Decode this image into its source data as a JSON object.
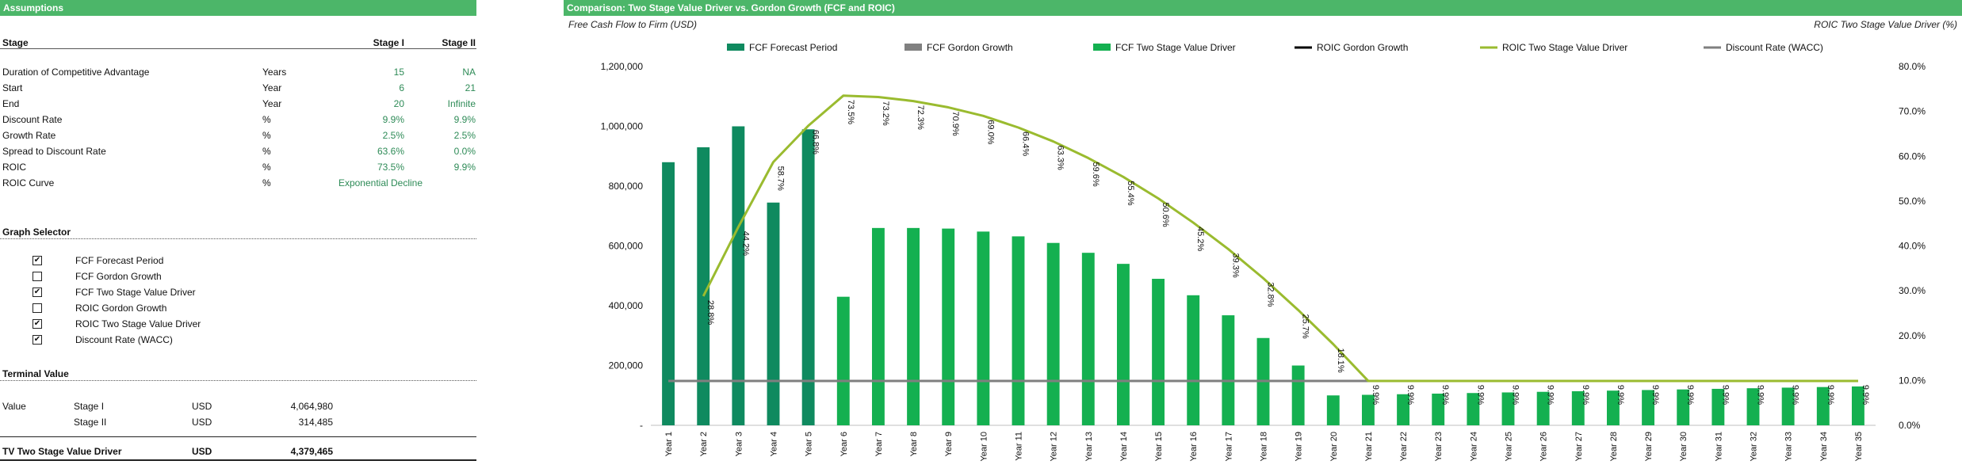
{
  "left_panel": {
    "header": "Assumptions",
    "stage_table": {
      "title": "Stage",
      "col_stage1": "Stage I",
      "col_stage2": "Stage II",
      "rows": [
        {
          "label": "Duration of Competitive Advantage",
          "unit": "Years",
          "s1": "15",
          "s2": "NA"
        },
        {
          "label": "Start",
          "unit": "Year",
          "s1": "6",
          "s2": "21"
        },
        {
          "label": "End",
          "unit": "Year",
          "s1": "20",
          "s2": "Infinite"
        },
        {
          "label": "Discount Rate",
          "unit": "%",
          "s1": "9.9%",
          "s2": "9.9%"
        },
        {
          "label": "Growth Rate",
          "unit": "%",
          "s1": "2.5%",
          "s2": "2.5%"
        },
        {
          "label": "Spread to Discount Rate",
          "unit": "%",
          "s1": "63.6%",
          "s2": "0.0%"
        },
        {
          "label": "ROIC",
          "unit": "%",
          "s1": "73.5%",
          "s2": "9.9%"
        },
        {
          "label": "ROIC Curve",
          "unit": "%",
          "s1": "Exponential Decline",
          "s2": ""
        }
      ]
    },
    "graph_selector": {
      "title": "Graph Selector",
      "items": [
        {
          "label": "FCF Forecast Period",
          "checked": true
        },
        {
          "label": "FCF Gordon Growth",
          "checked": false
        },
        {
          "label": "FCF Two Stage Value Driver",
          "checked": true
        },
        {
          "label": "ROIC Gordon Growth",
          "checked": false
        },
        {
          "label": "ROIC Two Stage Value Driver",
          "checked": true
        },
        {
          "label": "Discount Rate (WACC)",
          "checked": true
        }
      ]
    },
    "terminal_value": {
      "title": "Terminal Value",
      "row1": {
        "label": "Value",
        "stage": "Stage I",
        "unit": "USD",
        "value": "4,064,980"
      },
      "row2": {
        "label": "",
        "stage": "Stage II",
        "unit": "USD",
        "value": "314,485"
      },
      "total": {
        "label": "TV Two Stage Value Driver",
        "unit": "USD",
        "value": "4,379,465"
      }
    }
  },
  "right_panel": {
    "header": "Comparison: Two Stage Value Driver vs. Gordon Growth (FCF and ROIC)"
  },
  "chart_data": {
    "type": "bar",
    "title": "",
    "left_axis_title": "Free Cash Flow to Firm (USD)",
    "right_axis_title": "ROIC Two Stage Value Driver (%)",
    "y_left_range": [
      0,
      1200000
    ],
    "y_left_ticks": [
      "-",
      "200,000",
      "400,000",
      "600,000",
      "800,000",
      "1,000,000",
      "1,200,000"
    ],
    "y_right_range": [
      0,
      80
    ],
    "y_right_ticks": [
      "0.0%",
      "10.0%",
      "20.0%",
      "30.0%",
      "40.0%",
      "50.0%",
      "60.0%",
      "70.0%",
      "80.0%"
    ],
    "legend_position": "top",
    "legend": [
      {
        "name": "FCF Forecast Period",
        "color": "#0f8a5f",
        "kind": "bar"
      },
      {
        "name": "FCF Gordon Growth",
        "color": "#808080",
        "kind": "bar"
      },
      {
        "name": "FCF Two Stage Value Driver",
        "color": "#14b050",
        "kind": "bar"
      },
      {
        "name": "ROIC Gordon Growth",
        "color": "#000000",
        "kind": "line"
      },
      {
        "name": "ROIC Two Stage Value Driver",
        "color": "#9abb2f",
        "kind": "line"
      },
      {
        "name": "Discount Rate (WACC)",
        "color": "#7f7f7f",
        "kind": "line"
      }
    ],
    "categories": [
      "Year 1",
      "Year 2",
      "Year 3",
      "Year 4",
      "Year 5",
      "Year 6",
      "Year 7",
      "Year 8",
      "Year 9",
      "Year 10",
      "Year 11",
      "Year 12",
      "Year 13",
      "Year 14",
      "Year 15",
      "Year 16",
      "Year 17",
      "Year 18",
      "Year 19",
      "Year 20",
      "Year 21",
      "Year 22",
      "Year 23",
      "Year 24",
      "Year 25",
      "Year 26",
      "Year 27",
      "Year 28",
      "Year 29",
      "Year 30",
      "Year 31",
      "Year 32",
      "Year 33",
      "Year 34",
      "Year 35"
    ],
    "series": [
      {
        "name": "FCF Forecast Period",
        "axis": "left",
        "values": [
          880000,
          930000,
          1000000,
          745000,
          990000,
          null,
          null,
          null,
          null,
          null,
          null,
          null,
          null,
          null,
          null,
          null,
          null,
          null,
          null,
          null,
          null,
          null,
          null,
          null,
          null,
          null,
          null,
          null,
          null,
          null,
          null,
          null,
          null,
          null,
          null
        ]
      },
      {
        "name": "FCF Two Stage Value Driver",
        "axis": "left",
        "values": [
          null,
          null,
          null,
          null,
          null,
          430000,
          660000,
          660000,
          658000,
          648000,
          632000,
          610000,
          577000,
          540000,
          490000,
          435000,
          368000,
          292000,
          200000,
          100000,
          102000,
          104000,
          106000,
          108000,
          110000,
          112000,
          114000,
          116000,
          118000,
          120000,
          122000,
          124000,
          126000,
          128000,
          130000
        ]
      },
      {
        "name": "ROIC Two Stage Value Driver",
        "axis": "right",
        "values": [
          null,
          28.8,
          44.2,
          58.7,
          66.8,
          73.5,
          73.2,
          72.3,
          70.9,
          69.0,
          66.4,
          63.3,
          59.6,
          55.4,
          50.6,
          45.2,
          39.3,
          32.8,
          25.7,
          18.1,
          9.9,
          9.9,
          9.9,
          9.9,
          9.9,
          9.9,
          9.9,
          9.9,
          9.9,
          9.9,
          9.9,
          9.9,
          9.9,
          9.9,
          9.9
        ],
        "labels": [
          "",
          "28.8%",
          "44.2%",
          "58.7%",
          "66.8%",
          "73.5%",
          "73.2%",
          "72.3%",
          "70.9%",
          "69.0%",
          "66.4%",
          "63.3%",
          "59.6%",
          "55.4%",
          "50.6%",
          "45.2%",
          "39.3%",
          "32.8%",
          "25.7%",
          "18.1%",
          "9.9%",
          "9.9%",
          "9.9%",
          "9.9%",
          "9.9%",
          "9.9%",
          "9.9%",
          "9.9%",
          "9.9%",
          "9.9%",
          "9.9%",
          "9.9%",
          "9.9%",
          "9.9%",
          "9.9%"
        ]
      },
      {
        "name": "Discount Rate (WACC)",
        "axis": "right",
        "values": [
          9.9,
          9.9,
          9.9,
          9.9,
          9.9,
          9.9,
          9.9,
          9.9,
          9.9,
          9.9,
          9.9,
          9.9,
          9.9,
          9.9,
          9.9,
          9.9,
          9.9,
          9.9,
          9.9,
          9.9,
          9.9,
          9.9,
          9.9,
          9.9,
          9.9,
          9.9,
          9.9,
          9.9,
          9.9,
          9.9,
          9.9,
          9.9,
          9.9,
          9.9,
          9.9
        ]
      }
    ]
  }
}
